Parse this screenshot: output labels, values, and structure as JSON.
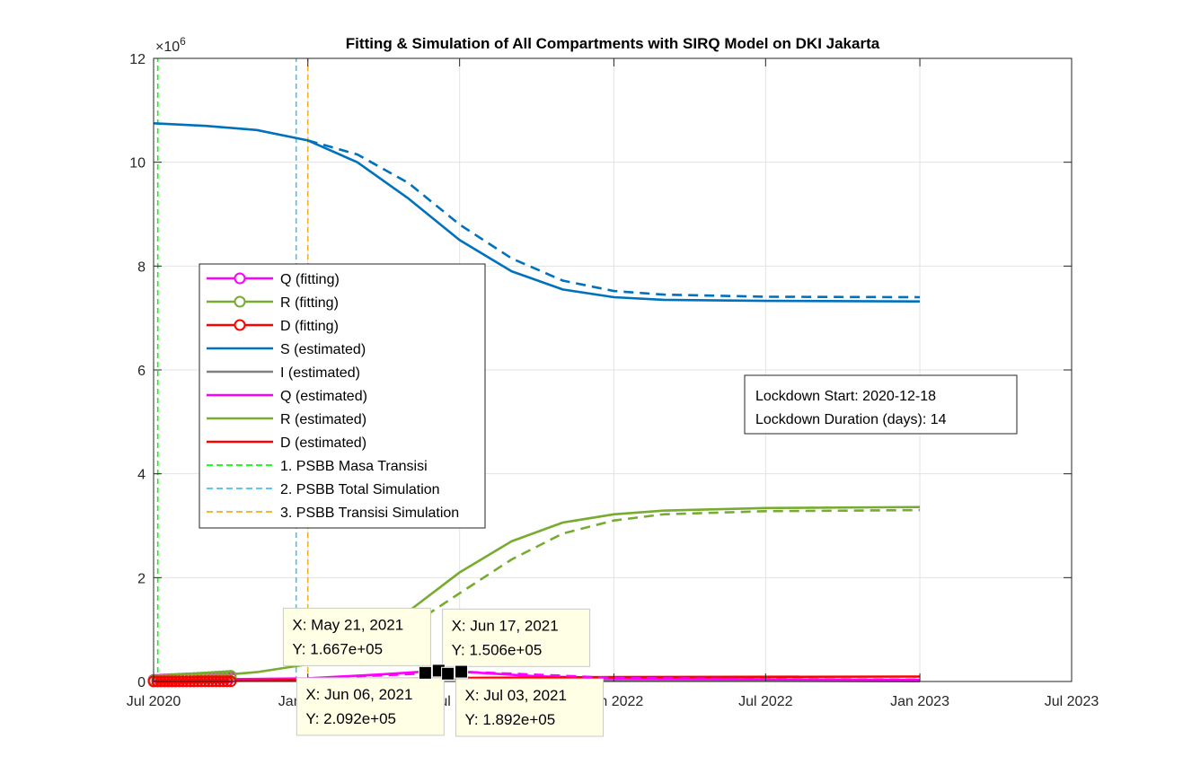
{
  "chart_data": {
    "type": "line",
    "title": "Fitting & Simulation of All Compartments with SIRQ Model on DKI Jakarta",
    "y_exponent_label": "×10",
    "y_exponent_power": "6",
    "xlabel": "",
    "ylabel": "",
    "xlim": [
      "2020-07-01",
      "2023-07-01"
    ],
    "ylim": [
      0,
      12000000
    ],
    "grid": true,
    "legend_position": "center-left",
    "x_ticks": [
      {
        "date": "2020-07-01",
        "label": "Jul 2020"
      },
      {
        "date": "2021-01-01",
        "label": "Jan 2021"
      },
      {
        "date": "2021-07-01",
        "label": "Jul 2021"
      },
      {
        "date": "2022-01-01",
        "label": "Jan 2022"
      },
      {
        "date": "2022-07-01",
        "label": "Jul 2022"
      },
      {
        "date": "2023-01-01",
        "label": "Jan 2023"
      },
      {
        "date": "2023-07-01",
        "label": "Jul 2023"
      }
    ],
    "y_ticks": [
      {
        "value": 0,
        "label": "0"
      },
      {
        "value": 2000000,
        "label": "2"
      },
      {
        "value": 4000000,
        "label": "4"
      },
      {
        "value": 6000000,
        "label": "6"
      },
      {
        "value": 8000000,
        "label": "8"
      },
      {
        "value": 10000000,
        "label": "10"
      },
      {
        "value": 12000000,
        "label": "12"
      }
    ],
    "series": [
      {
        "name": "Q (fitting)",
        "color": "#ff00ff",
        "style": "marker-line",
        "x": [
          "2020-07-01",
          "2020-07-20",
          "2020-08-10",
          "2020-08-31",
          "2020-09-20",
          "2020-10-01"
        ],
        "y": [
          30000,
          45000,
          60000,
          70000,
          78000,
          80000
        ]
      },
      {
        "name": "R (fitting)",
        "color": "#77ac30",
        "style": "marker-line",
        "x": [
          "2020-07-01",
          "2020-07-20",
          "2020-08-10",
          "2020-08-31",
          "2020-09-20",
          "2020-10-01"
        ],
        "y": [
          20000,
          40000,
          60000,
          80000,
          100000,
          110000
        ]
      },
      {
        "name": "D (fitting)",
        "color": "#ff0000",
        "style": "marker-line",
        "x": [
          "2020-07-01",
          "2020-07-20",
          "2020-08-10",
          "2020-08-31",
          "2020-09-20",
          "2020-10-01"
        ],
        "y": [
          2000,
          2500,
          3000,
          3500,
          4000,
          4200
        ]
      },
      {
        "name": "S (estimated)",
        "color": "#0072bd",
        "style": "solid",
        "x": [
          "2020-07-01",
          "2020-09-01",
          "2020-11-01",
          "2021-01-01",
          "2021-03-01",
          "2021-05-01",
          "2021-07-01",
          "2021-09-01",
          "2021-11-01",
          "2022-01-01",
          "2022-03-01",
          "2022-07-01",
          "2023-01-01"
        ],
        "y": [
          10750000,
          10700000,
          10620000,
          10420000,
          10000000,
          9300000,
          8500000,
          7900000,
          7550000,
          7400000,
          7350000,
          7330000,
          7320000
        ]
      },
      {
        "name": "I (estimated)",
        "color": "#808080",
        "style": "solid",
        "x": [
          "2020-07-01",
          "2021-01-01",
          "2021-06-01",
          "2022-01-01",
          "2023-01-01"
        ],
        "y": [
          5000,
          20000,
          60000,
          20000,
          5000
        ]
      },
      {
        "name": "Q (estimated)",
        "color": "#ff00ff",
        "style": "solid",
        "x": [
          "2020-07-01",
          "2021-01-01",
          "2021-04-01",
          "2021-06-06",
          "2021-08-01",
          "2021-10-01",
          "2022-01-01",
          "2022-07-01",
          "2023-01-01"
        ],
        "y": [
          30000,
          60000,
          140000,
          209200,
          160000,
          100000,
          60000,
          40000,
          30000
        ]
      },
      {
        "name": "R (estimated)",
        "color": "#77ac30",
        "style": "solid",
        "x": [
          "2020-07-01",
          "2020-09-01",
          "2020-11-01",
          "2021-01-01",
          "2021-03-01",
          "2021-05-01",
          "2021-07-01",
          "2021-09-01",
          "2021-11-01",
          "2022-01-01",
          "2022-03-01",
          "2022-07-01",
          "2023-01-01"
        ],
        "y": [
          50000,
          100000,
          180000,
          330000,
          700000,
          1350000,
          2100000,
          2700000,
          3060000,
          3220000,
          3290000,
          3340000,
          3360000
        ]
      },
      {
        "name": "D (estimated)",
        "color": "#ff0000",
        "style": "solid",
        "x": [
          "2020-07-01",
          "2021-01-01",
          "2021-07-01",
          "2022-01-01",
          "2023-01-01"
        ],
        "y": [
          3000,
          30000,
          70000,
          85000,
          95000
        ]
      },
      {
        "name": "1. PSBB Masa Transisi",
        "color": "#00ff00",
        "style": "dashed-vertical",
        "x": [
          "2020-07-06",
          "2020-07-06"
        ],
        "y": [
          0,
          12000000
        ]
      },
      {
        "name": "2. PSBB Total Simulation",
        "color": "#4dbeee",
        "style": "dashed-vertical",
        "x": [
          "2020-12-18",
          "2020-12-18"
        ],
        "y": [
          0,
          12000000
        ]
      },
      {
        "name": "3. PSBB Transisi Simulation",
        "color": "#edb120",
        "style": "dashed-vertical",
        "x": [
          "2021-01-01",
          "2021-01-01"
        ],
        "y": [
          0,
          12000000
        ]
      },
      {
        "name": "",
        "color": "#0072bd",
        "style": "dashed",
        "legend": false,
        "x": [
          "2021-01-01",
          "2021-03-01",
          "2021-05-01",
          "2021-07-01",
          "2021-09-01",
          "2021-11-01",
          "2022-01-01",
          "2022-03-01",
          "2022-07-01",
          "2023-01-01"
        ],
        "y": [
          10420000,
          10150000,
          9600000,
          8800000,
          8150000,
          7720000,
          7520000,
          7450000,
          7410000,
          7400000
        ]
      },
      {
        "name": "",
        "color": "#77ac30",
        "style": "dashed",
        "legend": false,
        "x": [
          "2021-01-01",
          "2021-03-01",
          "2021-05-01",
          "2021-07-01",
          "2021-09-01",
          "2021-11-01",
          "2022-01-01",
          "2022-03-01",
          "2022-07-01",
          "2023-01-01"
        ],
        "y": [
          330000,
          550000,
          1050000,
          1700000,
          2350000,
          2850000,
          3100000,
          3220000,
          3280000,
          3300000
        ]
      },
      {
        "name": "",
        "color": "#ff00ff",
        "style": "dashed",
        "legend": false,
        "x": [
          "2021-01-01",
          "2021-04-01",
          "2021-07-03",
          "2021-09-01",
          "2021-11-01",
          "2022-01-01",
          "2022-07-01",
          "2023-01-01"
        ],
        "y": [
          60000,
          120000,
          189200,
          150000,
          110000,
          70000,
          45000,
          35000
        ]
      }
    ],
    "datatips": [
      {
        "x": "2021-05-21",
        "y": 166700,
        "line1": "X: May 21, 2021",
        "line2": "Y: 1.667e+05",
        "anchor": "above-left"
      },
      {
        "x": "2021-06-06",
        "y": 209200,
        "line1": "X: Jun 06, 2021",
        "line2": "Y: 2.092e+05",
        "anchor": "below-left"
      },
      {
        "x": "2021-06-17",
        "y": 150600,
        "line1": "X: Jun 17, 2021",
        "line2": "Y: 1.506e+05",
        "anchor": "above-right"
      },
      {
        "x": "2021-07-03",
        "y": 189200,
        "line1": "X: Jul 03, 2021",
        "line2": "Y: 1.892e+05",
        "anchor": "below-right"
      }
    ],
    "annotation": {
      "line1": "Lockdown Start: 2020-12-18",
      "line2": "Lockdown Duration (days): 14"
    }
  }
}
